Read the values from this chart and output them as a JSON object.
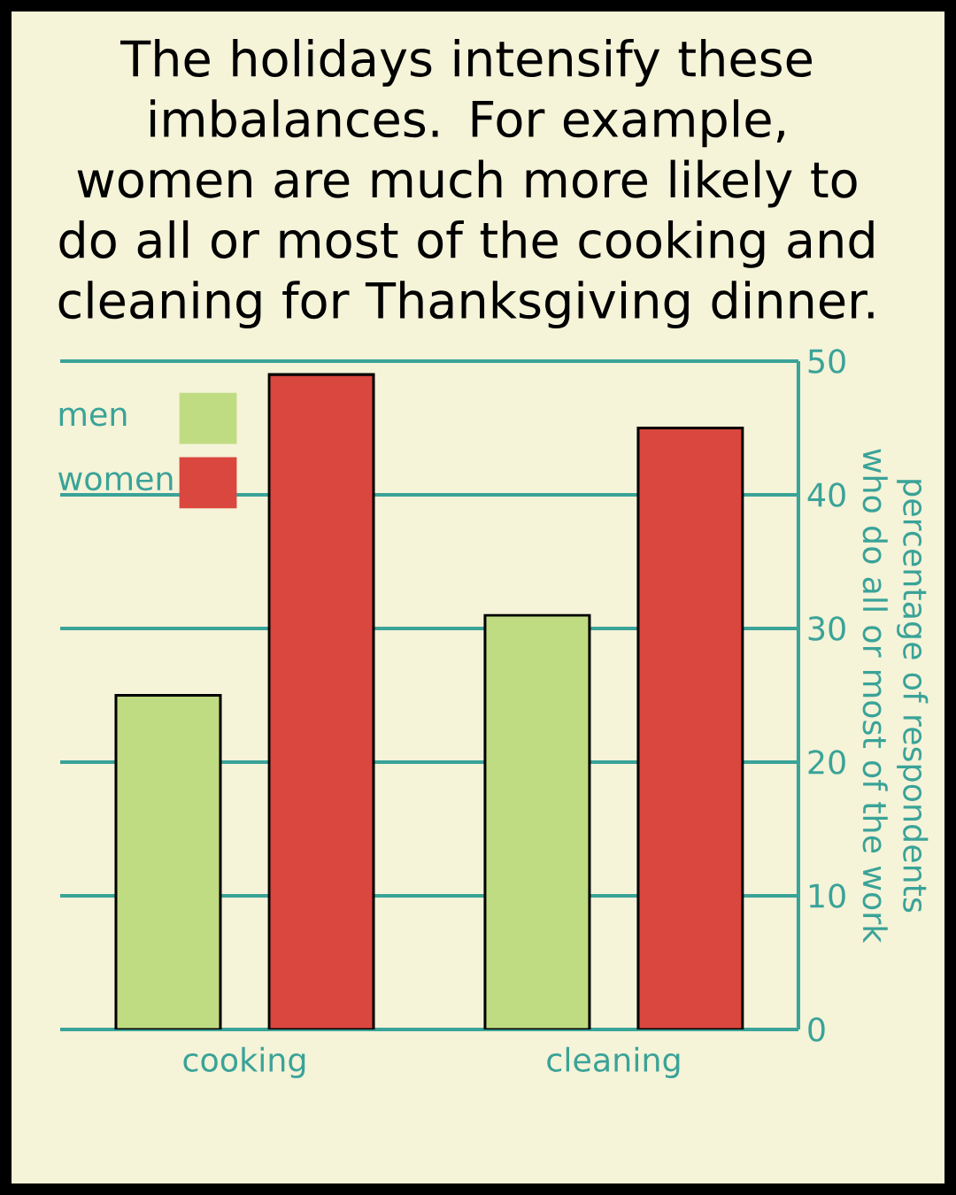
{
  "chart_data": {
    "type": "bar",
    "title": "The holidays intensify these imbalances. For example, women are much more likely to do all or most of the cooking and cleaning for Thanksgiving dinner.",
    "ylabel": "percentage of respondents who do all or most of the work",
    "categories": [
      "cooking",
      "cleaning"
    ],
    "series": [
      {
        "name": "men",
        "color": "#c0dc82",
        "values": [
          25,
          31
        ]
      },
      {
        "name": "women",
        "color": "#d9473f",
        "values": [
          49,
          45
        ]
      }
    ],
    "ylim": [
      0,
      50
    ],
    "yticks": [
      0,
      10,
      20,
      30,
      40,
      50
    ],
    "grid": "y",
    "legend": "top left"
  }
}
